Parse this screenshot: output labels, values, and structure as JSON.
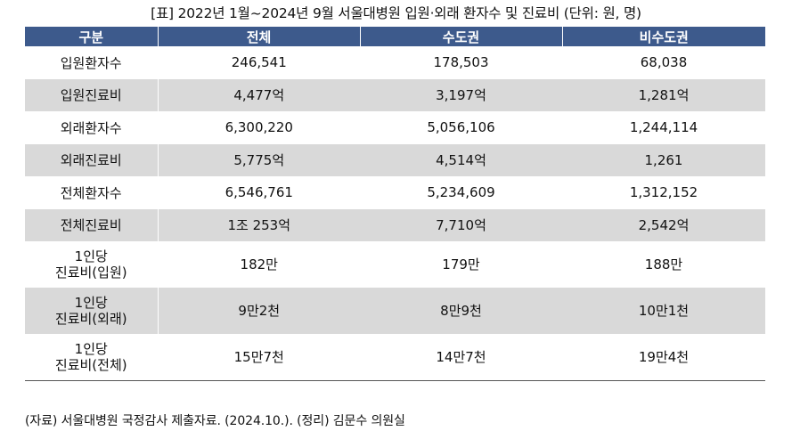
{
  "caption": "[표] 2022년 1월~2024년 9월 서울대병원 입원·외래 환자수 및 진료비 (단위: 원, 명)",
  "headers": [
    "구분",
    "전체",
    "수도권",
    "비수도권"
  ],
  "rows": [
    {
      "label": "입원환자수",
      "total": "246,541",
      "capital": "178,503",
      "noncapital": "68,038"
    },
    {
      "label": "입원진료비",
      "total": "4,477억",
      "capital": "3,197억",
      "noncapital": "1,281억"
    },
    {
      "label": "외래환자수",
      "total": "6,300,220",
      "capital": "5,056,106",
      "noncapital": "1,244,114"
    },
    {
      "label": "외래진료비",
      "total": "5,775억",
      "capital": "4,514억",
      "noncapital": "1,261"
    },
    {
      "label": "전체환자수",
      "total": "6,546,761",
      "capital": "5,234,609",
      "noncapital": "1,312,152"
    },
    {
      "label": "전체진료비",
      "total": "1조 253억",
      "capital": "7,710억",
      "noncapital": "2,542억"
    },
    {
      "label_line1": "1인당",
      "label_line2": "진료비(입원)",
      "total": "182만",
      "capital": "179만",
      "noncapital": "188만"
    },
    {
      "label_line1": "1인당",
      "label_line2": "진료비(외래)",
      "total": "9만2천",
      "capital": "8만9천",
      "noncapital": "10만1천"
    },
    {
      "label_line1": "1인당",
      "label_line2": "진료비(전체)",
      "total": "15만7천",
      "capital": "14만7천",
      "noncapital": "19만4천"
    }
  ],
  "source_note": "(자료) 서울대병원 국정감사 제출자료. (2024.10.). (정리) 김문수 의원실",
  "colors": {
    "header_bg": "#3d5a8c",
    "header_text": "#ffffff",
    "alt_row": "#d9d9d9"
  }
}
